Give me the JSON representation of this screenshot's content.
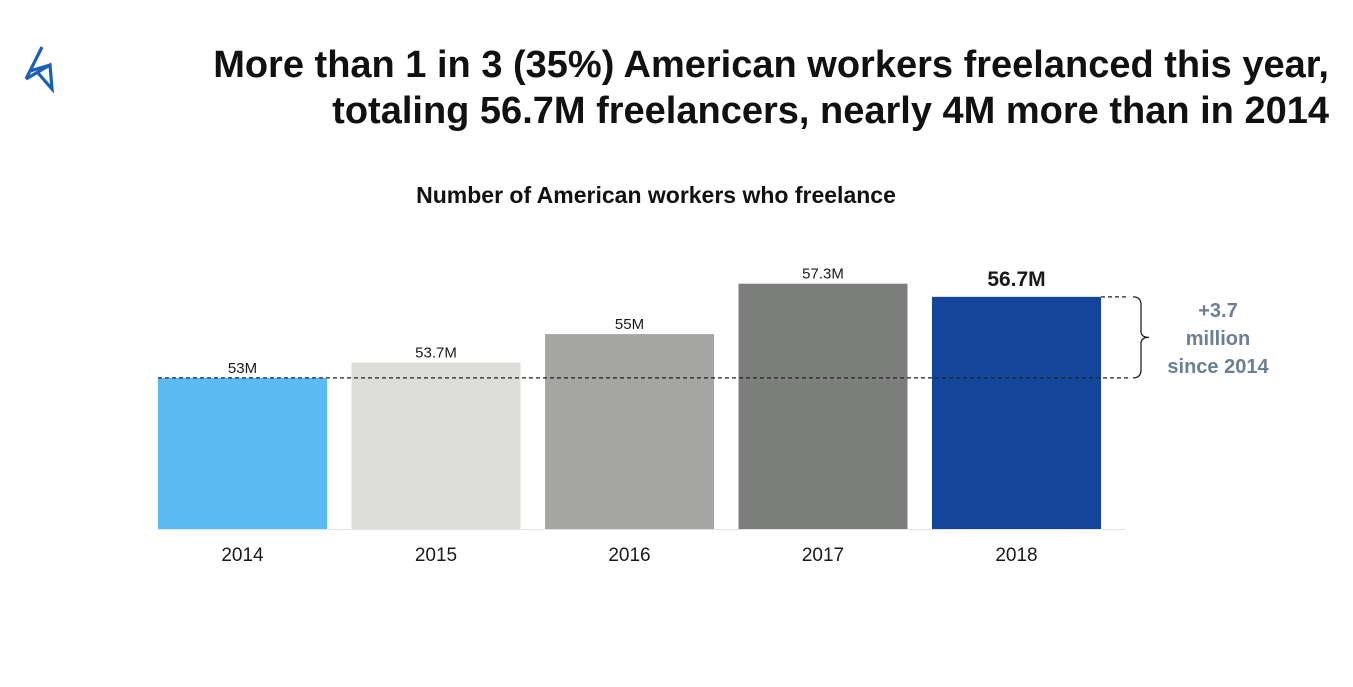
{
  "logo": {
    "icon": "upwork-style-triangle-logo",
    "color": "#1b5fb5"
  },
  "headline": {
    "line1": "More than 1 in 3 (35%) American workers freelanced this year,",
    "line2": "totaling 56.7M freelancers, nearly 4M more than in 2014"
  },
  "chart_data": {
    "type": "bar",
    "title": "Number of American workers who freelance",
    "xlabel": "",
    "ylabel": "",
    "categories": [
      "2014",
      "2015",
      "2016",
      "2017",
      "2018"
    ],
    "values": [
      53,
      53.7,
      55,
      57.3,
      56.7
    ],
    "value_labels": [
      "53M",
      "53.7M",
      "55M",
      "57.3M",
      "56.7M"
    ],
    "unit": "M",
    "colors": [
      "#5bbaf2",
      "#dcdcd8",
      "#a6a6a5",
      "#7c7e7c",
      "#13459b"
    ],
    "highlight_index": 4,
    "ylim": [
      46.1,
      58.2
    ],
    "grid": false,
    "legend": "none",
    "reference_line": {
      "value": 53,
      "style": "dashed"
    },
    "annotation": {
      "lines": [
        "+3.7",
        "million",
        "since 2014"
      ],
      "from_value": 53,
      "to_value": 56.7
    }
  }
}
